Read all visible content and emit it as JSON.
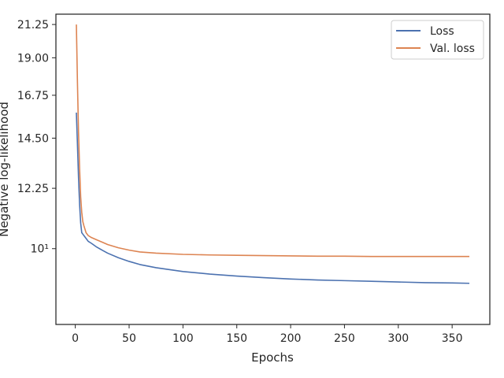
{
  "chart_data": {
    "type": "line",
    "title": "",
    "xlabel": "Epochs",
    "ylabel": "Negative log-likelihood",
    "xscale": "linear",
    "yscale": "log",
    "xlim": [
      -18,
      385
    ],
    "ylim": [
      7.75,
      22.0
    ],
    "xticks": [
      0,
      50,
      100,
      150,
      200,
      250,
      300,
      350
    ],
    "yticks": [
      {
        "value": 21.25,
        "label": "21.25"
      },
      {
        "value": 19.0,
        "label": "19.00"
      },
      {
        "value": 16.75,
        "label": "16.75"
      },
      {
        "value": 14.5,
        "label": "14.50"
      },
      {
        "value": 12.25,
        "label": "12.25"
      },
      {
        "value": 10.0,
        "label": "10¹"
      }
    ],
    "grid": false,
    "legend_position": "top-right",
    "series": [
      {
        "name": "Loss",
        "color": "#4C72B0",
        "x": [
          1,
          2,
          3,
          4,
          5,
          6,
          7,
          8,
          10,
          12,
          15,
          20,
          25,
          30,
          40,
          50,
          60,
          75,
          100,
          125,
          150,
          175,
          200,
          225,
          250,
          275,
          300,
          325,
          350,
          366
        ],
        "y": [
          15.8,
          14.2,
          12.7,
          11.6,
          10.9,
          10.55,
          10.5,
          10.45,
          10.35,
          10.25,
          10.18,
          10.05,
          9.95,
          9.85,
          9.7,
          9.58,
          9.48,
          9.38,
          9.26,
          9.18,
          9.12,
          9.07,
          9.03,
          9.0,
          8.98,
          8.96,
          8.94,
          8.92,
          8.91,
          8.9
        ]
      },
      {
        "name": "Val. loss",
        "color": "#DD8452",
        "x": [
          1,
          2,
          3,
          4,
          5,
          6,
          7,
          8,
          10,
          12,
          15,
          20,
          25,
          30,
          40,
          50,
          60,
          75,
          100,
          125,
          150,
          175,
          200,
          225,
          250,
          275,
          300,
          325,
          350,
          366
        ],
        "y": [
          21.25,
          17.5,
          14.8,
          13.1,
          11.9,
          11.3,
          10.95,
          10.8,
          10.55,
          10.45,
          10.38,
          10.3,
          10.22,
          10.14,
          10.03,
          9.95,
          9.89,
          9.85,
          9.81,
          9.79,
          9.78,
          9.77,
          9.76,
          9.75,
          9.75,
          9.74,
          9.74,
          9.74,
          9.74,
          9.74
        ]
      }
    ]
  }
}
